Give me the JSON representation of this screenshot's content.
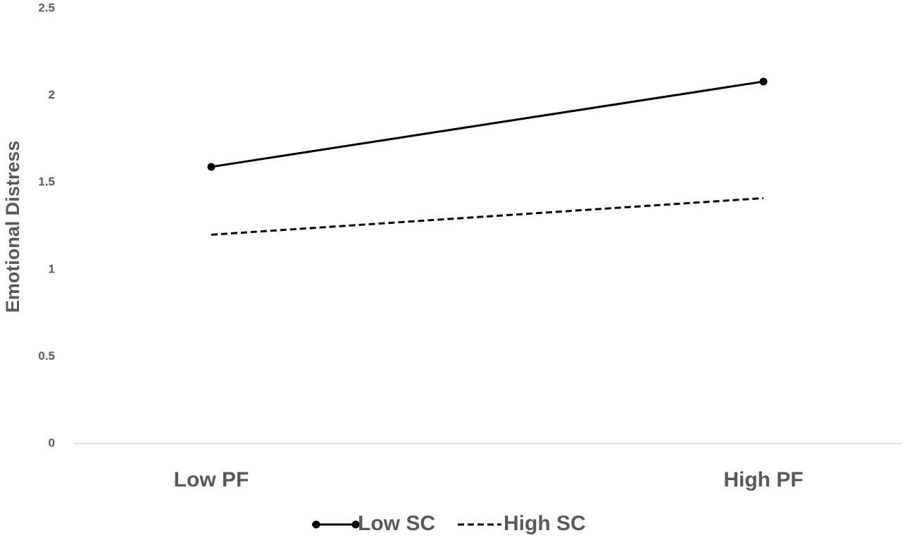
{
  "chart_data": {
    "type": "line",
    "y_label": "Emotional Distress",
    "categories": [
      "Low PF",
      "High PF"
    ],
    "series": [
      {
        "name": "Low SC",
        "color": "#000000",
        "dashed": false,
        "markers": true,
        "values": [
          1.59,
          2.08
        ]
      },
      {
        "name": "High SC",
        "color": "#000000",
        "dashed": true,
        "markers": false,
        "values": [
          1.2,
          1.41
        ]
      }
    ],
    "ylim": [
      0,
      2.5
    ],
    "yticks": [
      0,
      0.5,
      1,
      1.5,
      2,
      2.5
    ],
    "grid": false,
    "legend": "bottom"
  }
}
